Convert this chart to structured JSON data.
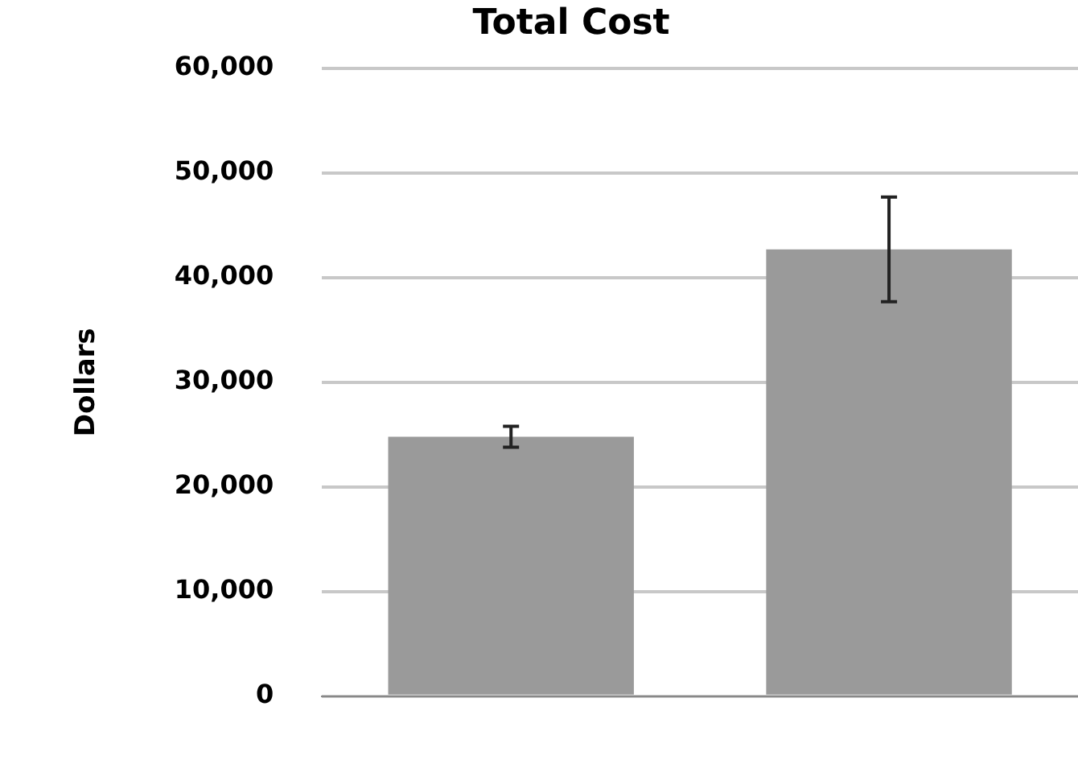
{
  "chart_data": {
    "type": "bar",
    "title": "Total Cost",
    "ylabel": "Dollars",
    "categories": [
      null,
      null
    ],
    "values": [
      24800,
      42700
    ],
    "errors": [
      1000,
      5000
    ],
    "color": "#9a9a9a",
    "ylim": [
      0,
      60000
    ],
    "yticks": [
      {
        "value": 0,
        "label": "0"
      },
      {
        "value": 10000,
        "label": "10,000"
      },
      {
        "value": 20000,
        "label": "20,000"
      },
      {
        "value": 30000,
        "label": "30,000"
      },
      {
        "value": 40000,
        "label": "40,000"
      },
      {
        "value": 50000,
        "label": "50,000"
      },
      {
        "value": 60000,
        "label": "60,000"
      }
    ],
    "grid": "y"
  }
}
